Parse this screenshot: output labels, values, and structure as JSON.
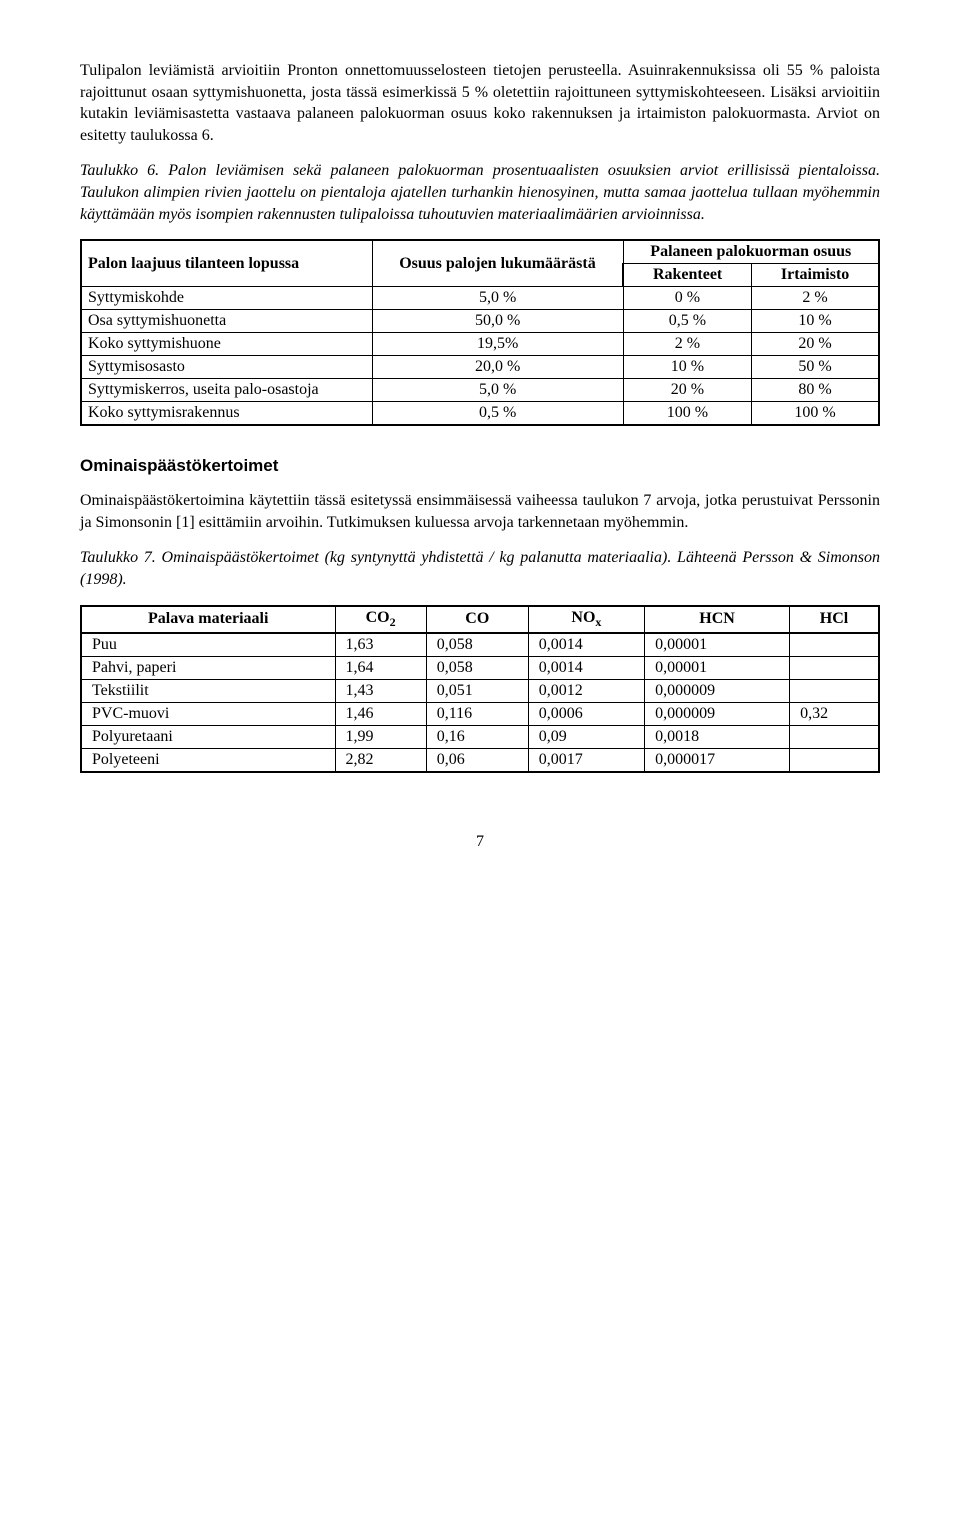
{
  "para1": "Tulipalon leviämistä arvioitiin Pronton onnettomuusselosteen tietojen perusteella. Asuinrakennuksissa oli 55 % paloista rajoittunut osaan syttymishuonetta, josta tässä esimerkissä 5 % oletettiin rajoittuneen syttymiskohteeseen. Lisäksi arvioitiin kutakin leviämisastetta vastaava palaneen palokuorman osuus koko rakennuksen ja irtaimiston palokuormasta. Arviot on esitetty taulukossa 6.",
  "table6_caption": "Taulukko 6. Palon leviämisen sekä palaneen palokuorman prosentuaalisten osuuksien arviot erillisissä pientaloissa. Taulukon alimpien rivien jaottelu on pientaloja ajatellen turhankin hienosyinen, mutta samaa jaottelua tullaan myöhemmin käyttämään myös isompien rakennusten tulipaloissa tuhoutuvien materiaalimäärien arvioinnissa.",
  "table6": {
    "head_c1": "Palon laajuus tilanteen lopussa",
    "head_c2": "Osuus palojen lukumäärästä",
    "head_c3": "Palaneen palokuorman osuus",
    "sub_c3a": "Rakenteet",
    "sub_c3b": "Irtaimisto",
    "rows": [
      {
        "label": "Syttymiskohde",
        "c2": "5,0 %",
        "c3": "0   %",
        "c4": "2 %"
      },
      {
        "label": "Osa syttymishuonetta",
        "c2": "50,0 %",
        "c3": "0,5 %",
        "c4": "10 %"
      },
      {
        "label": "Koko syttymishuone",
        "c2": "19,5%",
        "c3": "2   %",
        "c4": "20 %"
      },
      {
        "label": "Syttymisosasto",
        "c2": "20,0 %",
        "c3": "10   %",
        "c4": "50 %"
      },
      {
        "label": "Syttymiskerros, useita palo-osastoja",
        "c2": "5,0 %",
        "c3": "20   %",
        "c4": "80 %"
      },
      {
        "label": "Koko syttymisrakennus",
        "c2": "0,5 %",
        "c3": "100   %",
        "c4": "100 %"
      }
    ]
  },
  "section2_title": "Ominaispäästökertoimet",
  "para2": "Ominaispäästökertoimina käytettiin tässä esitetyssä ensimmäisessä vaiheessa taulukon 7 arvoja, jotka perustuivat Perssonin ja Simonsonin [1] esittämiin arvoihin. Tutkimuksen kuluessa arvoja tarkennetaan myöhemmin.",
  "table7_caption": "Taulukko 7. Ominaispäästökertoimet (kg syntynyttä yhdistettä / kg palanutta materiaalia). Lähteenä Persson & Simonson (1998).",
  "table7": {
    "head": {
      "c1": "Palava materiaali",
      "c2": "CO₂",
      "c3": "CO",
      "c4": "NOₓ",
      "c5": "HCN",
      "c6": "HCl"
    },
    "rows": [
      {
        "c1": "Puu",
        "c2": "1,63",
        "c3": "0,058",
        "c4": "0,0014",
        "c5": "0,00001",
        "c6": ""
      },
      {
        "c1": "Pahvi, paperi",
        "c2": "1,64",
        "c3": "0,058",
        "c4": "0,0014",
        "c5": "0,00001",
        "c6": ""
      },
      {
        "c1": "Tekstiilit",
        "c2": "1,43",
        "c3": "0,051",
        "c4": "0,0012",
        "c5": "0,000009",
        "c6": ""
      },
      {
        "c1": "PVC-muovi",
        "c2": "1,46",
        "c3": "0,116",
        "c4": "0,0006",
        "c5": "0,000009",
        "c6": "0,32"
      },
      {
        "c1": "Polyuretaani",
        "c2": "1,99",
        "c3": "0,16",
        "c4": "0,09",
        "c5": "0,0018",
        "c6": ""
      },
      {
        "c1": "Polyeteeni",
        "c2": "2,82",
        "c3": "0,06",
        "c4": "0,0017",
        "c5": "0,000017",
        "c6": ""
      }
    ]
  },
  "pagenum": "7"
}
